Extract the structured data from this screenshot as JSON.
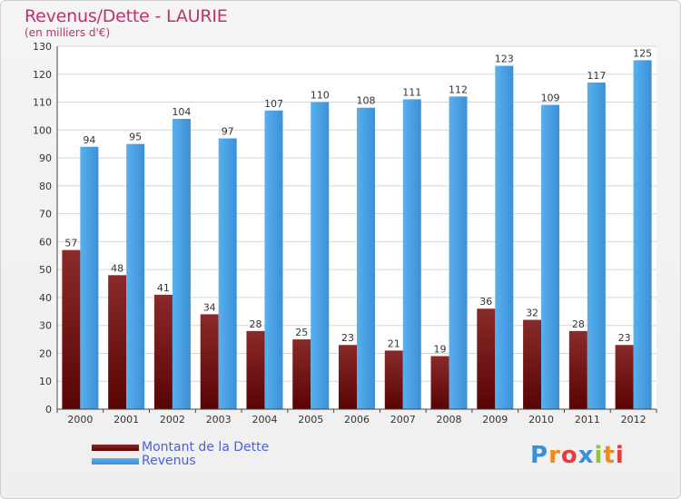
{
  "chart_data": {
    "type": "bar",
    "title": "Revenus/Dette - LAURIE",
    "subtitle": "(en milliers d'€)",
    "categories": [
      "2000",
      "2001",
      "2002",
      "2003",
      "2004",
      "2005",
      "2006",
      "2007",
      "2008",
      "2009",
      "2010",
      "2011",
      "2012"
    ],
    "series": [
      {
        "name": "Montant de la Dette",
        "color": "#7a1010",
        "values": [
          57,
          48,
          41,
          34,
          28,
          25,
          23,
          21,
          19,
          36,
          32,
          28,
          23
        ]
      },
      {
        "name": "Revenus",
        "color": "#4da3e6",
        "values": [
          94,
          95,
          104,
          97,
          107,
          110,
          108,
          111,
          112,
          123,
          109,
          117,
          125
        ]
      }
    ],
    "yticks": [
      0,
      10,
      20,
      30,
      40,
      50,
      60,
      70,
      80,
      90,
      100,
      110,
      120,
      130
    ],
    "ylim": [
      0,
      130
    ],
    "grid": true,
    "legend_position": "bottom-left"
  },
  "logo": {
    "letters": [
      {
        "char": "P",
        "color": "#3a8fd8"
      },
      {
        "char": "r",
        "color": "#f28a1b"
      },
      {
        "char": "o",
        "color": "#e83b3b"
      },
      {
        "char": "x",
        "color": "#3a8fd8"
      },
      {
        "char": "i",
        "color": "#8cc63f"
      },
      {
        "char": "t",
        "color": "#f28a1b"
      },
      {
        "char": "i",
        "color": "#e83b3b"
      }
    ]
  }
}
